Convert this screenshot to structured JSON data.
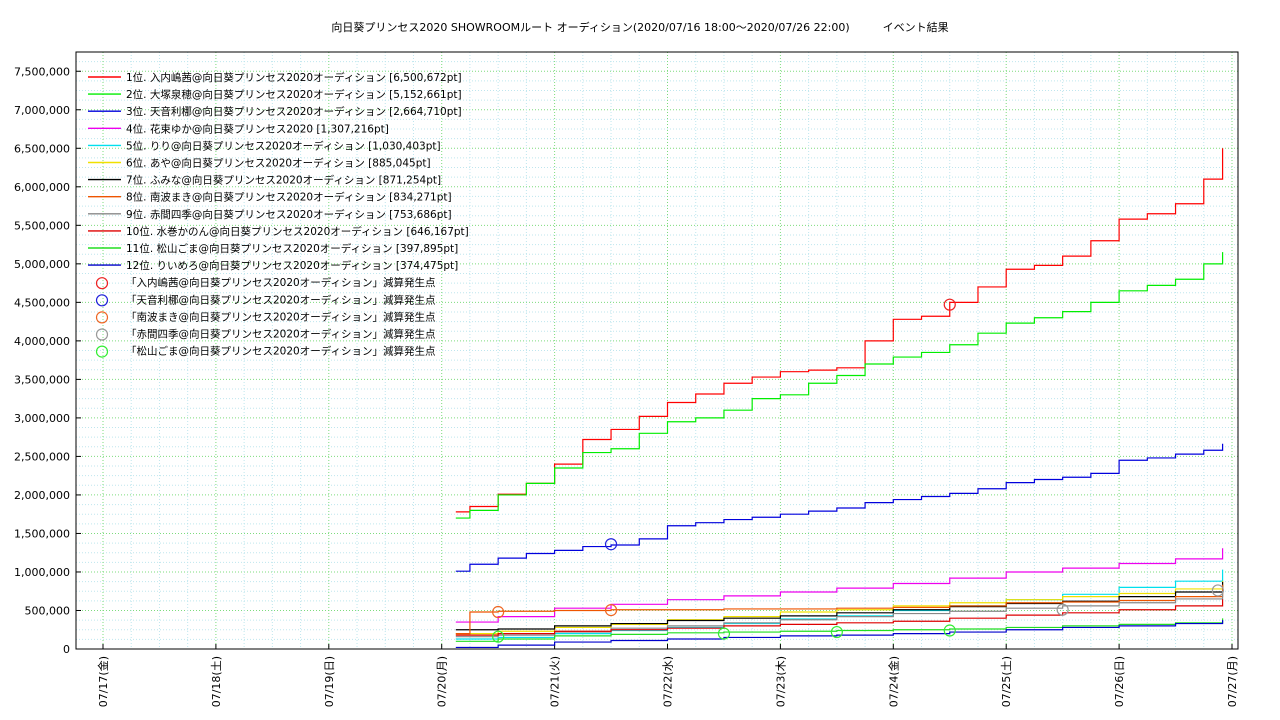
{
  "chart_data": {
    "type": "line",
    "title": "向日葵プリンセス2020 SHOWROOMルート オーディション(2020/07/16 18:00〜2020/07/26 22:00)　　　イベント結果",
    "x_ticks": [
      "07/17(金)",
      "07/18(土)",
      "07/19(日)",
      "07/20(月)",
      "07/21(火)",
      "07/22(水)",
      "07/23(木)",
      "07/24(金)",
      "07/25(土)",
      "07/26(日)",
      "07/27(月)"
    ],
    "xlim": [
      "07/17 00:00",
      "07/27 00:00"
    ],
    "ylim": [
      0,
      7750000
    ],
    "y_ticks": [
      0,
      500000,
      1000000,
      1500000,
      2000000,
      2500000,
      3000000,
      3500000,
      4000000,
      4500000,
      5000000,
      5500000,
      6000000,
      6500000,
      7000000,
      7500000
    ],
    "y_tick_labels": [
      "0",
      "500,000",
      "1,000,000",
      "1,500,000",
      "2,000,000",
      "2,500,000",
      "3,000,000",
      "3,500,000",
      "4,000,000",
      "4,500,000",
      "5,000,000",
      "5,500,000",
      "6,000,000",
      "6,500,000",
      "7,000,000",
      "7,500,000"
    ],
    "grid": true,
    "legend_position": "top-left",
    "series": [
      {
        "name": "1位. 入内嶋茜@向日葵プリンセス2020オーディション [6,500,672pt]",
        "color": "#ff0000",
        "x": [
          "07/20 03:00",
          "07/20 06:00",
          "07/20 12:00",
          "07/20 18:00",
          "07/21 00:00",
          "07/21 06:00",
          "07/21 12:00",
          "07/21 18:00",
          "07/22 00:00",
          "07/22 06:00",
          "07/22 12:00",
          "07/22 18:00",
          "07/23 00:00",
          "07/23 06:00",
          "07/23 12:00",
          "07/23 18:00",
          "07/24 00:00",
          "07/24 06:00",
          "07/24 12:00",
          "07/24 18:00",
          "07/25 00:00",
          "07/25 06:00",
          "07/25 12:00",
          "07/25 18:00",
          "07/26 00:00",
          "07/26 06:00",
          "07/26 12:00",
          "07/26 18:00",
          "07/26 22:00"
        ],
        "y": [
          1780000,
          1850000,
          2010000,
          2150000,
          2400000,
          2720000,
          2850000,
          3020000,
          3200000,
          3310000,
          3450000,
          3530000,
          3600000,
          3620000,
          3650000,
          4000000,
          4280000,
          4320000,
          4500000,
          4700000,
          4930000,
          4980000,
          5100000,
          5300000,
          5580000,
          5650000,
          5780000,
          6100000,
          6500672
        ]
      },
      {
        "name": "2位. 大塚泉穂@向日葵プリンセス2020オーディション [5,152,661pt]",
        "color": "#00ee00",
        "x": [
          "07/20 03:00",
          "07/20 06:00",
          "07/20 12:00",
          "07/20 18:00",
          "07/21 00:00",
          "07/21 06:00",
          "07/21 12:00",
          "07/21 18:00",
          "07/22 00:00",
          "07/22 06:00",
          "07/22 12:00",
          "07/22 18:00",
          "07/23 00:00",
          "07/23 06:00",
          "07/23 12:00",
          "07/23 18:00",
          "07/24 00:00",
          "07/24 06:00",
          "07/24 12:00",
          "07/24 18:00",
          "07/25 00:00",
          "07/25 06:00",
          "07/25 12:00",
          "07/25 18:00",
          "07/26 00:00",
          "07/26 06:00",
          "07/26 12:00",
          "07/26 18:00",
          "07/26 22:00"
        ],
        "y": [
          1700000,
          1800000,
          2000000,
          2150000,
          2350000,
          2550000,
          2600000,
          2800000,
          2950000,
          3000000,
          3100000,
          3250000,
          3300000,
          3450000,
          3550000,
          3700000,
          3790000,
          3850000,
          3950000,
          4100000,
          4230000,
          4300000,
          4380000,
          4500000,
          4650000,
          4720000,
          4800000,
          5000000,
          5152661
        ]
      },
      {
        "name": "3位. 天音利梛@向日葵プリンセス2020オーディション [2,664,710pt]",
        "color": "#0000dd",
        "x": [
          "07/20 03:00",
          "07/20 06:00",
          "07/20 12:00",
          "07/20 18:00",
          "07/21 00:00",
          "07/21 06:00",
          "07/21 12:00",
          "07/21 18:00",
          "07/22 00:00",
          "07/22 06:00",
          "07/22 12:00",
          "07/22 18:00",
          "07/23 00:00",
          "07/23 06:00",
          "07/23 12:00",
          "07/23 18:00",
          "07/24 00:00",
          "07/24 06:00",
          "07/24 12:00",
          "07/24 18:00",
          "07/25 00:00",
          "07/25 06:00",
          "07/25 12:00",
          "07/25 18:00",
          "07/26 00:00",
          "07/26 06:00",
          "07/26 12:00",
          "07/26 18:00",
          "07/26 22:00"
        ],
        "y": [
          1010000,
          1100000,
          1180000,
          1240000,
          1280000,
          1330000,
          1350000,
          1430000,
          1600000,
          1640000,
          1680000,
          1710000,
          1750000,
          1790000,
          1830000,
          1900000,
          1940000,
          1980000,
          2020000,
          2080000,
          2160000,
          2200000,
          2230000,
          2280000,
          2450000,
          2480000,
          2530000,
          2580000,
          2664710
        ]
      },
      {
        "name": "4位. 花束ゆか@向日葵プリンセス2020 [1,307,216pt]",
        "color": "#ee00ee",
        "x": [
          "07/20 03:00",
          "07/20 12:00",
          "07/21 00:00",
          "07/21 12:00",
          "07/22 00:00",
          "07/22 12:00",
          "07/23 00:00",
          "07/23 12:00",
          "07/24 00:00",
          "07/24 12:00",
          "07/25 00:00",
          "07/25 12:00",
          "07/26 00:00",
          "07/26 12:00",
          "07/26 22:00"
        ],
        "y": [
          350000,
          420000,
          530000,
          580000,
          640000,
          690000,
          740000,
          790000,
          850000,
          920000,
          1000000,
          1050000,
          1110000,
          1170000,
          1307216
        ]
      },
      {
        "name": "5位. りり@向日葵プリンセス2020オーディション [1,030,403pt]",
        "color": "#00e0ee",
        "x": [
          "07/20 03:00",
          "07/20 12:00",
          "07/21 00:00",
          "07/21 12:00",
          "07/22 00:00",
          "07/22 12:00",
          "07/23 00:00",
          "07/23 12:00",
          "07/24 00:00",
          "07/24 12:00",
          "07/25 00:00",
          "07/25 12:00",
          "07/26 00:00",
          "07/26 12:00",
          "07/26 22:00"
        ],
        "y": [
          130000,
          150000,
          200000,
          240000,
          280000,
          330000,
          390000,
          430000,
          500000,
          560000,
          640000,
          710000,
          800000,
          880000,
          1030403
        ]
      },
      {
        "name": "6位. あや@向日葵プリンセス2020オーディション [885,045pt]",
        "color": "#f0e000",
        "x": [
          "07/20 03:00",
          "07/20 12:00",
          "07/21 00:00",
          "07/21 12:00",
          "07/22 00:00",
          "07/22 12:00",
          "07/23 00:00",
          "07/23 12:00",
          "07/24 00:00",
          "07/24 12:00",
          "07/25 00:00",
          "07/25 12:00",
          "07/26 00:00",
          "07/26 12:00",
          "07/26 22:00"
        ],
        "y": [
          200000,
          230000,
          280000,
          320000,
          380000,
          420000,
          480000,
          510000,
          560000,
          600000,
          640000,
          680000,
          720000,
          780000,
          885045
        ]
      },
      {
        "name": "7位. ふみな@向日葵プリンセス2020オーディション [871,254pt]",
        "color": "#000000",
        "x": [
          "07/20 03:00",
          "07/20 12:00",
          "07/21 00:00",
          "07/21 12:00",
          "07/22 00:00",
          "07/22 12:00",
          "07/23 00:00",
          "07/23 12:00",
          "07/24 00:00",
          "07/24 12:00",
          "07/25 00:00",
          "07/25 12:00",
          "07/26 00:00",
          "07/26 12:00",
          "07/26 22:00"
        ],
        "y": [
          250000,
          260000,
          300000,
          330000,
          370000,
          400000,
          430000,
          470000,
          510000,
          550000,
          590000,
          620000,
          680000,
          740000,
          871254
        ]
      },
      {
        "name": "8位. 南波まき@向日葵プリンセス2020オーディション [834,271pt]",
        "color": "#ee5500",
        "x": [
          "07/20 03:00",
          "07/20 06:00",
          "07/20 12:00",
          "07/21 00:00",
          "07/21 12:00",
          "07/22 00:00",
          "07/22 12:00",
          "07/23 00:00",
          "07/23 12:00",
          "07/24 00:00",
          "07/24 12:00",
          "07/25 00:00",
          "07/25 12:00",
          "07/26 00:00",
          "07/26 12:00",
          "07/26 22:00"
        ],
        "y": [
          200000,
          480000,
          490000,
          500000,
          510000,
          510000,
          520000,
          520000,
          530000,
          540000,
          560000,
          600000,
          610000,
          630000,
          680000,
          834271
        ]
      },
      {
        "name": "9位. 赤間四季@向日葵プリンセス2020オーディション [753,686pt]",
        "color": "#888888",
        "x": [
          "07/20 03:00",
          "07/20 12:00",
          "07/21 00:00",
          "07/21 12:00",
          "07/22 00:00",
          "07/22 12:00",
          "07/23 00:00",
          "07/23 12:00",
          "07/24 00:00",
          "07/24 12:00",
          "07/25 00:00",
          "07/25 12:00",
          "07/26 00:00",
          "07/26 12:00",
          "07/26 22:00"
        ],
        "y": [
          160000,
          180000,
          220000,
          270000,
          300000,
          340000,
          380000,
          420000,
          460000,
          490000,
          530000,
          560000,
          600000,
          650000,
          753686
        ]
      },
      {
        "name": "10位. 水巻かのん@向日葵プリンセス2020オーディション [646,167pt]",
        "color": "#dd0000",
        "x": [
          "07/20 03:00",
          "07/20 12:00",
          "07/21 00:00",
          "07/21 12:00",
          "07/22 00:00",
          "07/22 12:00",
          "07/23 00:00",
          "07/23 12:00",
          "07/24 00:00",
          "07/24 12:00",
          "07/25 00:00",
          "07/25 12:00",
          "07/26 00:00",
          "07/26 12:00",
          "07/26 22:00"
        ],
        "y": [
          180000,
          200000,
          230000,
          250000,
          270000,
          300000,
          320000,
          340000,
          360000,
          400000,
          440000,
          470000,
          510000,
          560000,
          646167
        ]
      },
      {
        "name": "11位. 松山ごま@向日葵プリンセス2020オーディション [397,895pt]",
        "color": "#22dd22",
        "x": [
          "07/20 03:00",
          "07/20 12:00",
          "07/21 00:00",
          "07/21 12:00",
          "07/22 00:00",
          "07/22 12:00",
          "07/23 00:00",
          "07/23 12:00",
          "07/24 00:00",
          "07/24 12:00",
          "07/25 00:00",
          "07/25 12:00",
          "07/26 00:00",
          "07/26 12:00",
          "07/26 22:00"
        ],
        "y": [
          100000,
          130000,
          170000,
          190000,
          210000,
          220000,
          230000,
          240000,
          250000,
          260000,
          280000,
          300000,
          320000,
          340000,
          397895
        ]
      },
      {
        "name": "12位. りいめろ@向日葵プリンセス2020オーディション [374,475pt]",
        "color": "#0000cc",
        "x": [
          "07/20 03:00",
          "07/20 12:00",
          "07/21 00:00",
          "07/21 12:00",
          "07/22 00:00",
          "07/22 12:00",
          "07/23 00:00",
          "07/23 12:00",
          "07/24 00:00",
          "07/24 12:00",
          "07/25 00:00",
          "07/25 12:00",
          "07/26 00:00",
          "07/26 12:00",
          "07/26 22:00"
        ],
        "y": [
          20000,
          50000,
          90000,
          110000,
          130000,
          150000,
          170000,
          180000,
          200000,
          220000,
          250000,
          280000,
          300000,
          330000,
          374475
        ]
      }
    ],
    "markers": [
      {
        "name": "「入内嶋茜@向日葵プリンセス2020オーディション」減算発生点",
        "color": "#ee2222",
        "points": [
          {
            "x": "07/24 12:00",
            "y": 4470000
          }
        ]
      },
      {
        "name": "「天音利梛@向日葵プリンセス2020オーディション」減算発生点",
        "color": "#2222dd",
        "points": [
          {
            "x": "07/21 12:00",
            "y": 1360000
          }
        ]
      },
      {
        "name": "「南波まき@向日葵プリンセス2020オーディション」減算発生点",
        "color": "#ee6622",
        "points": [
          {
            "x": "07/20 12:00",
            "y": 480000
          },
          {
            "x": "07/21 12:00",
            "y": 505000
          }
        ]
      },
      {
        "name": "「赤間四季@向日葵プリンセス2020オーディション」減算発生点",
        "color": "#999999",
        "points": [
          {
            "x": "07/25 12:00",
            "y": 510000
          },
          {
            "x": "07/26 21:00",
            "y": 760000
          }
        ]
      },
      {
        "name": "「松山ごま@向日葵プリンセス2020オーディション」減算発生点",
        "color": "#33ee33",
        "points": [
          {
            "x": "07/20 12:00",
            "y": 160000
          },
          {
            "x": "07/22 12:00",
            "y": 200000
          },
          {
            "x": "07/23 12:00",
            "y": 220000
          },
          {
            "x": "07/24 12:00",
            "y": 240000
          }
        ]
      }
    ]
  }
}
